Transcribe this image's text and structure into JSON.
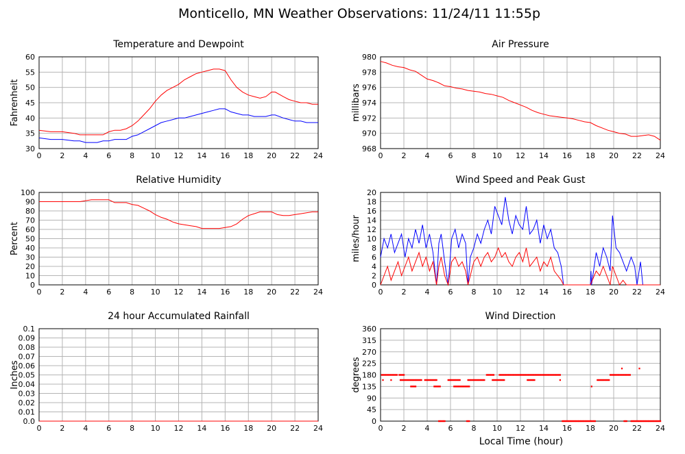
{
  "title": "Monticello, MN Weather Observations: 11/24/11 11:55p",
  "xlabel": "Local Time (hour)",
  "chart_data": [
    {
      "type": "line",
      "title": "Temperature and Dewpoint",
      "ylabel": "Fahrenheit",
      "xlim": [
        0,
        24
      ],
      "ylim": [
        30,
        60
      ],
      "xticks": [
        0,
        2,
        4,
        6,
        8,
        10,
        12,
        14,
        16,
        18,
        20,
        22,
        24
      ],
      "yticks": [
        30,
        35,
        40,
        45,
        50,
        55,
        60
      ],
      "grid": true,
      "series": [
        {
          "color": "#ff0000",
          "x": [
            0,
            1,
            2,
            3,
            3.5,
            4,
            5,
            5.5,
            6,
            6.5,
            7,
            7.5,
            8,
            8.5,
            9,
            9.5,
            10,
            10.5,
            11,
            11.5,
            12,
            12.5,
            13,
            13.5,
            14,
            14.5,
            15,
            15.5,
            16,
            16.5,
            17,
            17.5,
            18,
            18.5,
            19,
            19.5,
            20,
            20.3,
            21,
            21.5,
            22,
            22.5,
            23,
            23.5,
            24
          ],
          "y": [
            36,
            35.5,
            35.5,
            35,
            34.5,
            34.5,
            34.5,
            34.5,
            35.5,
            36,
            36,
            36.5,
            37.5,
            39,
            41,
            43,
            45.5,
            47.5,
            49,
            50,
            51,
            52.5,
            53.5,
            54.5,
            55,
            55.5,
            56,
            56,
            55.5,
            52.5,
            50,
            48.5,
            47.5,
            47,
            46.5,
            47,
            48.5,
            48.5,
            47,
            46,
            45.5,
            45,
            45,
            44.5,
            44.5
          ]
        },
        {
          "color": "#0000ff",
          "x": [
            0,
            1,
            2,
            3,
            3.5,
            4,
            5,
            5.5,
            6,
            6.5,
            7,
            7.5,
            8,
            8.5,
            9,
            9.5,
            10,
            10.5,
            11,
            11.5,
            12,
            12.5,
            13,
            13.5,
            14,
            14.5,
            15,
            15.5,
            16,
            16.5,
            17,
            17.5,
            18,
            18.5,
            19,
            19.5,
            20,
            20.3,
            21,
            21.5,
            22,
            22.5,
            23,
            23.5,
            24
          ],
          "y": [
            33.5,
            33,
            33,
            32.5,
            32.5,
            32,
            32,
            32.5,
            32.5,
            33,
            33,
            33,
            34,
            34.5,
            35.5,
            36.5,
            37.5,
            38.5,
            39,
            39.5,
            40,
            40,
            40.5,
            41,
            41.5,
            42,
            42.5,
            43,
            43,
            42,
            41.5,
            41,
            41,
            40.5,
            40.5,
            40.5,
            41,
            41,
            40,
            39.5,
            39,
            39,
            38.5,
            38.5,
            38.5
          ]
        }
      ]
    },
    {
      "type": "line",
      "title": "Air Pressure",
      "ylabel": "millibars",
      "xlim": [
        0,
        24
      ],
      "ylim": [
        968,
        980
      ],
      "xticks": [
        0,
        2,
        4,
        6,
        8,
        10,
        12,
        14,
        16,
        18,
        20,
        22,
        24
      ],
      "yticks": [
        968,
        970,
        972,
        974,
        976,
        978,
        980
      ],
      "grid": true,
      "series": [
        {
          "color": "#ff0000",
          "x": [
            0,
            0.5,
            1,
            1.5,
            2,
            2.5,
            3,
            3.5,
            4,
            4.5,
            5,
            5.5,
            6,
            6.5,
            7,
            7.5,
            8,
            8.5,
            9,
            9.5,
            10,
            10.5,
            11,
            11.5,
            12,
            12.5,
            13,
            13.5,
            14,
            14.5,
            15,
            15.5,
            16,
            16.5,
            17,
            17.5,
            18,
            18.5,
            19,
            19.5,
            20,
            20.5,
            21,
            21.5,
            22,
            22.5,
            23,
            23.5,
            24
          ],
          "y": [
            979.4,
            979.2,
            978.9,
            978.7,
            978.6,
            978.3,
            978.1,
            977.6,
            977.1,
            976.9,
            976.6,
            976.2,
            976.1,
            975.9,
            975.8,
            975.6,
            975.5,
            975.4,
            975.2,
            975.1,
            974.9,
            974.7,
            974.3,
            974.0,
            973.7,
            973.4,
            973.0,
            972.7,
            972.5,
            972.3,
            972.2,
            972.1,
            972.0,
            971.9,
            971.7,
            971.5,
            971.4,
            971.0,
            970.7,
            970.4,
            970.2,
            970.0,
            969.9,
            969.6,
            969.6,
            969.7,
            969.8,
            969.6,
            969.1
          ]
        }
      ]
    },
    {
      "type": "line",
      "title": "Relative Humidity",
      "ylabel": "Percent",
      "xlim": [
        0,
        24
      ],
      "ylim": [
        0,
        100
      ],
      "xticks": [
        0,
        2,
        4,
        6,
        8,
        10,
        12,
        14,
        16,
        18,
        20,
        22,
        24
      ],
      "yticks": [
        0,
        10,
        20,
        30,
        40,
        50,
        60,
        70,
        80,
        90,
        100
      ],
      "grid": true,
      "series": [
        {
          "color": "#ff0000",
          "x": [
            0,
            1,
            2,
            3,
            3.5,
            4,
            4.5,
            5,
            5.5,
            6,
            6.5,
            7,
            7.5,
            8,
            8.5,
            9,
            9.5,
            10,
            10.5,
            11,
            11.5,
            12,
            12.5,
            13,
            13.5,
            14,
            14.5,
            15,
            15.5,
            16,
            16.5,
            17,
            17.5,
            18,
            18.5,
            19,
            19.5,
            20,
            20.5,
            21,
            21.5,
            22,
            22.5,
            23,
            23.5,
            24
          ],
          "y": [
            90,
            90,
            90,
            90,
            90,
            91,
            92,
            92,
            92,
            92,
            89,
            89,
            89,
            87,
            86,
            83,
            80,
            76,
            73,
            71,
            68,
            66,
            65,
            64,
            63,
            61,
            61,
            61,
            61,
            62,
            63,
            66,
            71,
            75,
            77,
            79,
            79,
            79,
            76,
            75,
            75,
            76,
            77,
            78,
            79,
            79
          ]
        }
      ]
    },
    {
      "type": "line",
      "title": "Wind Speed and Peak Gust",
      "ylabel": "miles/hour",
      "xlim": [
        0,
        24
      ],
      "ylim": [
        0,
        20
      ],
      "xticks": [
        0,
        2,
        4,
        6,
        8,
        10,
        12,
        14,
        16,
        18,
        20,
        22,
        24
      ],
      "yticks": [
        0,
        2,
        4,
        6,
        8,
        10,
        12,
        14,
        16,
        18,
        20
      ],
      "grid": true,
      "series": [
        {
          "color": "#0000ff",
          "x": [
            0,
            0.3,
            0.6,
            0.9,
            1.2,
            1.5,
            1.8,
            2.1,
            2.4,
            2.7,
            3.0,
            3.3,
            3.6,
            3.9,
            4.2,
            4.5,
            4.8,
            5.0,
            5.2,
            5.5,
            5.8,
            6.1,
            6.4,
            6.7,
            7.0,
            7.3,
            7.5,
            7.7,
            8.0,
            8.3,
            8.6,
            8.9,
            9.2,
            9.5,
            9.8,
            10.1,
            10.4,
            10.7,
            11.0,
            11.3,
            11.6,
            11.9,
            12.2,
            12.5,
            12.8,
            13.1,
            13.4,
            13.7,
            14.0,
            14.3,
            14.6,
            14.9,
            15.2,
            15.5,
            15.7,
            16,
            17,
            18,
            18.05,
            18.1,
            18.5,
            18.8,
            19.1,
            19.4,
            19.7,
            19.9,
            20.2,
            20.5,
            20.8,
            21.1,
            21.5,
            21.8,
            22.0,
            22.3,
            22.5,
            23,
            24
          ],
          "y": [
            6,
            10,
            8,
            11,
            7,
            9,
            11,
            6,
            10,
            8,
            12,
            9,
            13,
            8,
            11,
            7,
            0,
            9,
            11,
            5,
            0,
            10,
            12,
            8,
            11,
            9,
            0,
            6,
            8,
            11,
            9,
            12,
            14,
            11,
            17,
            15,
            13,
            19,
            14,
            11,
            15,
            13,
            12,
            17,
            11,
            12,
            14,
            9,
            13,
            10,
            12,
            8,
            7,
            4,
            0,
            0,
            0,
            0,
            3,
            0,
            7,
            4,
            8,
            6,
            3,
            15,
            8,
            7,
            5,
            3,
            6,
            4,
            0,
            5,
            0,
            0,
            0
          ]
        },
        {
          "color": "#ff0000",
          "x": [
            0,
            0.3,
            0.6,
            0.9,
            1.2,
            1.5,
            1.8,
            2.1,
            2.4,
            2.7,
            3.0,
            3.3,
            3.6,
            3.9,
            4.2,
            4.5,
            4.8,
            5.0,
            5.2,
            5.5,
            5.8,
            6.1,
            6.4,
            6.7,
            7.0,
            7.3,
            7.5,
            7.7,
            8.0,
            8.3,
            8.6,
            8.9,
            9.2,
            9.5,
            9.8,
            10.1,
            10.4,
            10.7,
            11.0,
            11.3,
            11.6,
            11.9,
            12.2,
            12.5,
            12.8,
            13.1,
            13.4,
            13.7,
            14.0,
            14.3,
            14.6,
            14.9,
            15.2,
            15.5,
            15.7,
            16,
            17,
            18,
            18.5,
            18.8,
            19.1,
            19.4,
            19.7,
            19.9,
            20.2,
            20.5,
            20.8,
            21.1,
            21.5,
            22,
            23,
            24
          ],
          "y": [
            0,
            2,
            4,
            1,
            3,
            5,
            2,
            4,
            6,
            3,
            5,
            7,
            4,
            6,
            3,
            5,
            0,
            4,
            6,
            2,
            0,
            5,
            6,
            4,
            5,
            3,
            0,
            2,
            5,
            6,
            4,
            6,
            7,
            5,
            6,
            8,
            6,
            7,
            5,
            4,
            6,
            7,
            5,
            8,
            4,
            5,
            6,
            3,
            5,
            4,
            6,
            3,
            2,
            1,
            0,
            0,
            0,
            0,
            3,
            2,
            4,
            2,
            0,
            4,
            2,
            0,
            1,
            0,
            0,
            0,
            0,
            0
          ]
        }
      ]
    },
    {
      "type": "line",
      "title": "24 hour Accumulated Rainfall",
      "ylabel": "Inches",
      "xlim": [
        0,
        24
      ],
      "ylim": [
        0,
        0.1
      ],
      "xticks": [
        0,
        2,
        4,
        6,
        8,
        10,
        12,
        14,
        16,
        18,
        20,
        22,
        24
      ],
      "yticks": [
        "0.0",
        "0.01",
        "0.02",
        "0.03",
        "0.04",
        "0.05",
        "0.06",
        "0.07",
        "0.08",
        "0.09",
        "0.1"
      ],
      "grid": true,
      "series": [
        {
          "color": "#ff0000",
          "x": [
            0,
            24
          ],
          "y": [
            0,
            0
          ]
        }
      ]
    },
    {
      "type": "scatter",
      "title": "Wind Direction",
      "ylabel": "degrees",
      "xlim": [
        0,
        24
      ],
      "ylim": [
        0,
        360
      ],
      "xticks": [
        0,
        2,
        4,
        6,
        8,
        10,
        12,
        14,
        16,
        18,
        20,
        22,
        24
      ],
      "yticks": [
        0,
        45,
        90,
        135,
        180,
        225,
        270,
        315,
        360
      ],
      "grid": true,
      "series": [
        {
          "color": "#ff0000",
          "segments": [
            {
              "x0": 0.1,
              "x1": 1.4,
              "y": 180,
              "step": 0.1
            },
            {
              "x0": 1.6,
              "x1": 2.0,
              "y": 180,
              "step": 0.1
            },
            {
              "x0": 1.7,
              "x1": 3.5,
              "y": 160,
              "step": 0.1
            },
            {
              "x0": 2.6,
              "x1": 3.0,
              "y": 135,
              "step": 0.1
            },
            {
              "x0": 3.8,
              "x1": 4.8,
              "y": 160,
              "step": 0.1
            },
            {
              "x0": 4.6,
              "x1": 5.1,
              "y": 135,
              "step": 0.1
            },
            {
              "x0": 5.0,
              "x1": 5.5,
              "y": 0,
              "step": 0.1
            },
            {
              "x0": 5.8,
              "x1": 6.8,
              "y": 160,
              "step": 0.1
            },
            {
              "x0": 6.3,
              "x1": 7.6,
              "y": 135,
              "step": 0.1
            },
            {
              "x0": 7.4,
              "x1": 7.6,
              "y": 0,
              "step": 0.1
            },
            {
              "x0": 7.5,
              "x1": 8.9,
              "y": 160,
              "step": 0.1
            },
            {
              "x0": 9.1,
              "x1": 9.7,
              "y": 180,
              "step": 0.1
            },
            {
              "x0": 9.6,
              "x1": 10.6,
              "y": 160,
              "step": 0.1
            },
            {
              "x0": 10.2,
              "x1": 15.4,
              "y": 180,
              "step": 0.1
            },
            {
              "x0": 12.6,
              "x1": 13.2,
              "y": 160,
              "step": 0.1
            },
            {
              "x0": 15.6,
              "x1": 18.4,
              "y": 0,
              "step": 0.1
            },
            {
              "x0": 18.6,
              "x1": 19.6,
              "y": 160,
              "step": 0.1
            },
            {
              "x0": 19.7,
              "x1": 21.4,
              "y": 180,
              "step": 0.1
            },
            {
              "x0": 20.9,
              "x1": 21.1,
              "y": 0,
              "step": 0.1
            },
            {
              "x0": 21.5,
              "x1": 24,
              "y": 0,
              "step": 0.1
            }
          ],
          "points": [
            [
              0.2,
              160
            ],
            [
              0.9,
              160
            ],
            [
              15.4,
              160
            ],
            [
              18.1,
              135
            ],
            [
              20.7,
              205
            ],
            [
              22.2,
              205
            ]
          ]
        }
      ]
    }
  ]
}
